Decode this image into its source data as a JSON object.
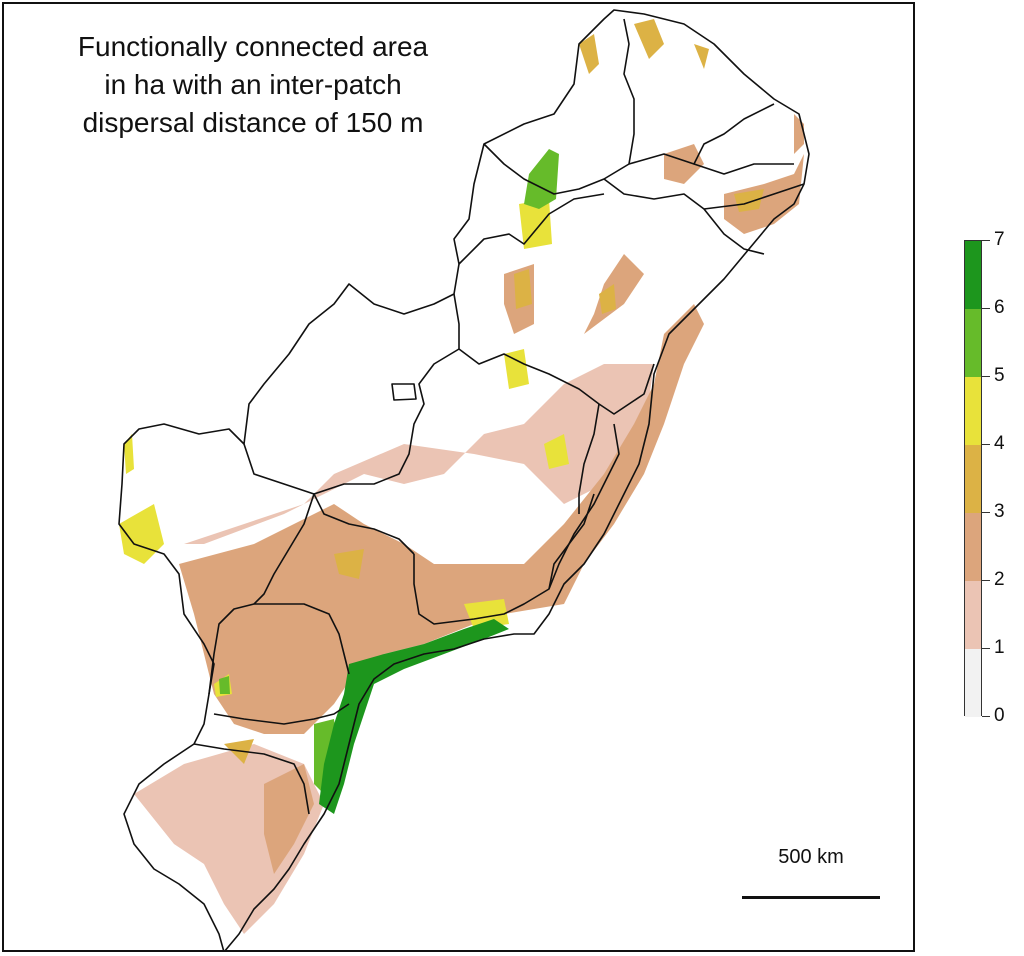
{
  "title_lines": [
    "Functionally connected area",
    "in ha with an inter-patch",
    "dispersal distance of 150 m"
  ],
  "scalebar": {
    "label": "500 km"
  },
  "legend": {
    "min": 0,
    "max": 7,
    "tick_labels": [
      "7",
      "6",
      "5",
      "4",
      "3",
      "2",
      "1",
      "0"
    ],
    "classes": [
      {
        "from": 0,
        "to": 1,
        "color": "#f2f2f2"
      },
      {
        "from": 1,
        "to": 2,
        "color": "#ebc4b4"
      },
      {
        "from": 2,
        "to": 3,
        "color": "#dca57c"
      },
      {
        "from": 3,
        "to": 4,
        "color": "#dcb245"
      },
      {
        "from": 4,
        "to": 5,
        "color": "#e8e23a"
      },
      {
        "from": 5,
        "to": 6,
        "color": "#66bb2a"
      },
      {
        "from": 6,
        "to": 7,
        "color": "#1d961d"
      }
    ]
  },
  "colors": {
    "outline": "#111111",
    "background": "#ffffff"
  }
}
